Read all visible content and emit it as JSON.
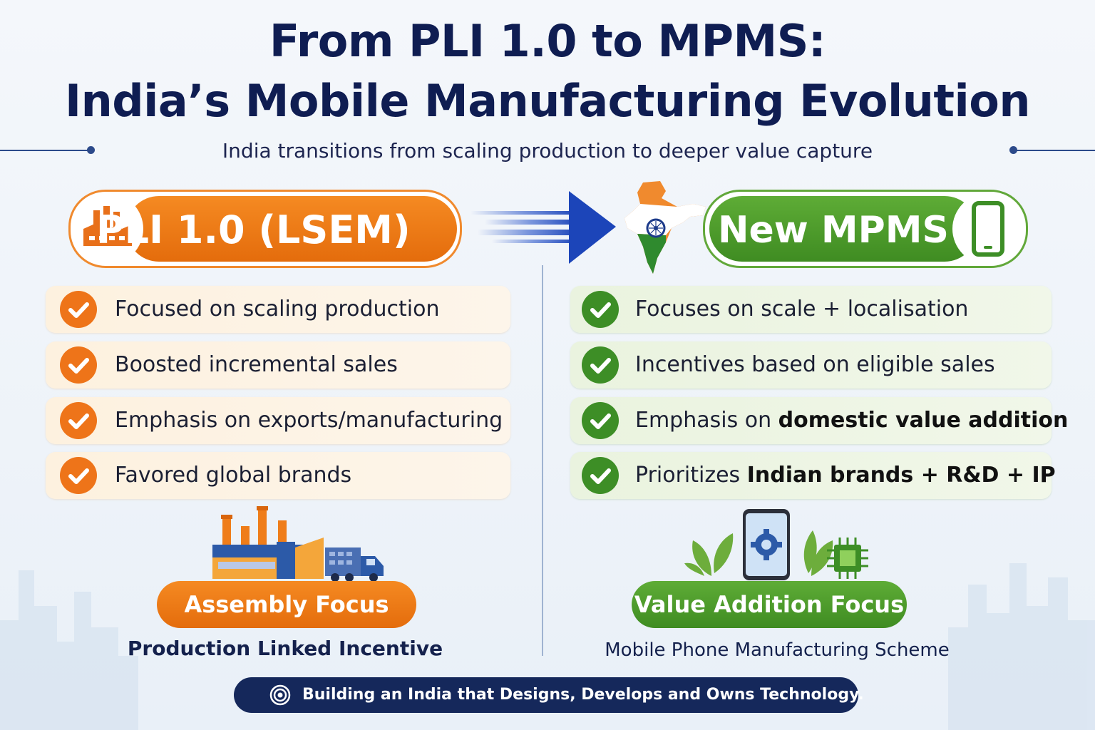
{
  "header": {
    "title_line1": "From PLI 1.0 to MPMS:",
    "title_line2": "India’s Mobile Manufacturing Evolution",
    "subtitle": "India transitions from scaling production to deeper value capture"
  },
  "left": {
    "label": "PLI 1.0 (LSEM)",
    "icon": "factory-icon",
    "color": "#ee7419",
    "items": [
      {
        "text": "Focused on scaling production"
      },
      {
        "text": "Boosted incremental sales"
      },
      {
        "text": "Emphasis on exports/manufacturing"
      },
      {
        "text": "Favored global brands"
      }
    ],
    "focus_label": "Assembly Focus",
    "caption": "Production Linked Incentive"
  },
  "right": {
    "label": "New MPMS",
    "icon": "smartphone-icon",
    "color": "#3d8e26",
    "items": [
      {
        "text": "Focuses on scale + localisation"
      },
      {
        "text": "Incentives based on eligible sales"
      },
      {
        "plain": "Emphasis on ",
        "bold": "domestic value addition"
      },
      {
        "plain": "Prioritizes ",
        "bold": "Indian brands + R&D + IP"
      }
    ],
    "focus_label": "Value Addition Focus",
    "caption": "Mobile Phone Manufacturing Scheme"
  },
  "footer": {
    "icon": "target-icon",
    "text": "Building an India that Designs, Develops and Owns Technology."
  }
}
